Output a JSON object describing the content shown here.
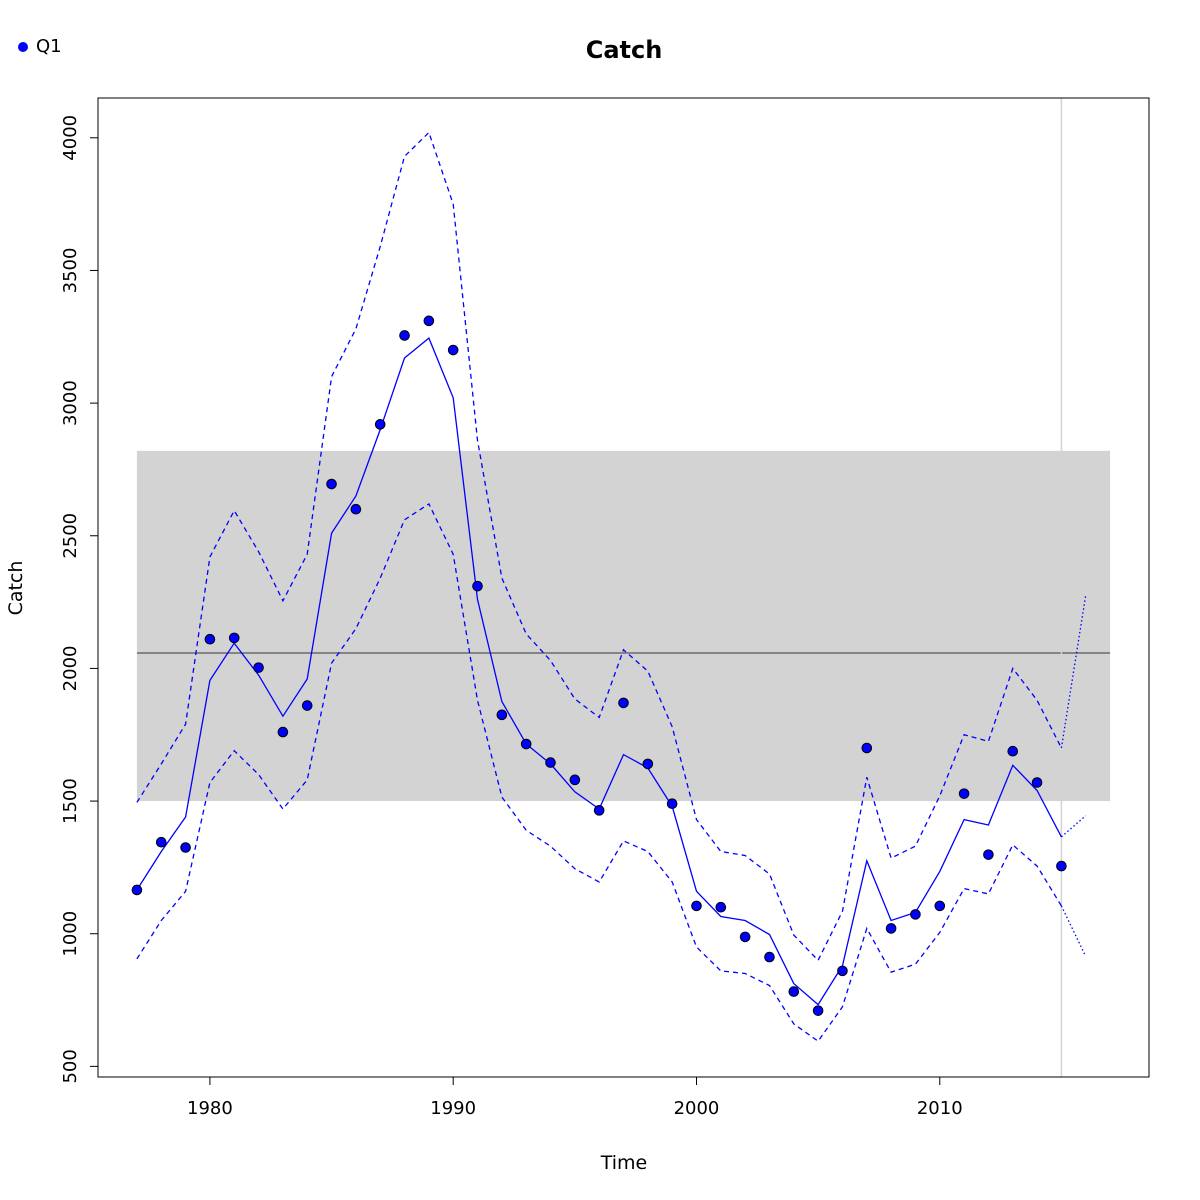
{
  "legend": {
    "label": "Q1",
    "color": "#0000ff"
  },
  "chart_data": {
    "type": "line",
    "title": "Catch",
    "xlabel": "Time",
    "ylabel": "Catch",
    "xlim": [
      1975.4,
      2018.6
    ],
    "ylim": [
      460,
      4150
    ],
    "x_ticks": [
      1980,
      1990,
      2000,
      2010
    ],
    "y_ticks": [
      500,
      1000,
      1500,
      2000,
      2500,
      3000,
      3500,
      4000
    ],
    "colors": {
      "series": "#0000ff",
      "band": "#d3d3d3",
      "mean_line": "#555555",
      "vline": "#d3d3d3"
    },
    "reference_band": {
      "x_range": [
        1977,
        2017
      ],
      "y_range": [
        1500,
        2820
      ]
    },
    "reference_line": {
      "y": 2058,
      "x_range": [
        1977,
        2017
      ]
    },
    "vertical_line": {
      "x": 2015
    },
    "series": [
      {
        "name": "Q1",
        "style": "points",
        "x": [
          1977,
          1978,
          1979,
          1980,
          1981,
          1982,
          1983,
          1984,
          1985,
          1986,
          1987,
          1988,
          1989,
          1990,
          1991,
          1992,
          1993,
          1994,
          1995,
          1996,
          1997,
          1998,
          1999,
          2000,
          2001,
          2002,
          2003,
          2004,
          2005,
          2006,
          2007,
          2008,
          2009,
          2010,
          2011,
          2012,
          2013,
          2014,
          2015
        ],
        "values": [
          1165,
          1345,
          1325,
          2110,
          2115,
          2003,
          1760,
          1860,
          2695,
          2600,
          2920,
          3255,
          3310,
          3200,
          2310,
          1825,
          1715,
          1645,
          1580,
          1465,
          1870,
          1640,
          1490,
          1105,
          1100,
          988,
          912,
          782,
          710,
          860,
          1700,
          1020,
          1073,
          1105,
          1528,
          1298,
          1688,
          1570,
          1255
        ]
      },
      {
        "style": "solid",
        "x": [
          1977,
          1978,
          1979,
          1980,
          1981,
          1982,
          1983,
          1984,
          1985,
          1986,
          1987,
          1988,
          1989,
          1990,
          1991,
          1992,
          1993,
          1994,
          1995,
          1996,
          1997,
          1998,
          1999,
          2000,
          2001,
          2002,
          2003,
          2004,
          2005,
          2006,
          2007,
          2008,
          2009,
          2010,
          2011,
          2012,
          2013,
          2014,
          2015
        ],
        "values": [
          1165,
          1310,
          1440,
          1955,
          2095,
          1975,
          1820,
          1960,
          2510,
          2650,
          2900,
          3170,
          3245,
          3020,
          2260,
          1875,
          1715,
          1640,
          1535,
          1470,
          1675,
          1625,
          1480,
          1160,
          1065,
          1050,
          997,
          812,
          733,
          880,
          1275,
          1050,
          1080,
          1235,
          1430,
          1410,
          1635,
          1540,
          1365
        ]
      },
      {
        "style": "dashed",
        "x": [
          1977,
          1978,
          1979,
          1980,
          1981,
          1982,
          1983,
          1984,
          1985,
          1986,
          1987,
          1988,
          1989,
          1990,
          1991,
          1992,
          1993,
          1994,
          1995,
          1996,
          1997,
          1998,
          1999,
          2000,
          2001,
          2002,
          2003,
          2004,
          2005,
          2006,
          2007,
          2008,
          2009,
          2010,
          2011,
          2012,
          2013,
          2014,
          2015
        ],
        "values": [
          1495,
          1640,
          1790,
          2420,
          2595,
          2440,
          2255,
          2430,
          3100,
          3280,
          3590,
          3930,
          4020,
          3750,
          2860,
          2340,
          2130,
          2030,
          1885,
          1815,
          2070,
          1990,
          1780,
          1430,
          1310,
          1295,
          1225,
          995,
          900,
          1085,
          1590,
          1285,
          1330,
          1520,
          1750,
          1725,
          2000,
          1880,
          1700
        ]
      },
      {
        "style": "dashed",
        "x": [
          1977,
          1978,
          1979,
          1980,
          1981,
          1982,
          1983,
          1984,
          1985,
          1986,
          1987,
          1988,
          1989,
          1990,
          1991,
          1992,
          1993,
          1994,
          1995,
          1996,
          1997,
          1998,
          1999,
          2000,
          2001,
          2002,
          2003,
          2004,
          2005,
          2006,
          2007,
          2008,
          2009,
          2010,
          2011,
          2012,
          2013,
          2014,
          2015
        ],
        "values": [
          905,
          1050,
          1160,
          1570,
          1690,
          1600,
          1470,
          1580,
          2020,
          2150,
          2340,
          2560,
          2620,
          2430,
          1880,
          1515,
          1390,
          1330,
          1245,
          1195,
          1350,
          1310,
          1195,
          950,
          860,
          850,
          805,
          660,
          595,
          725,
          1020,
          855,
          885,
          1005,
          1170,
          1150,
          1335,
          1255,
          1105
        ]
      },
      {
        "style": "dotted",
        "x": [
          2015,
          2016
        ],
        "values": [
          1365,
          1445
        ]
      },
      {
        "style": "dotted",
        "x": [
          2015,
          2016
        ],
        "values": [
          1700,
          2275
        ]
      },
      {
        "style": "dotted",
        "x": [
          2015,
          2016
        ],
        "values": [
          1105,
          915
        ]
      }
    ]
  }
}
